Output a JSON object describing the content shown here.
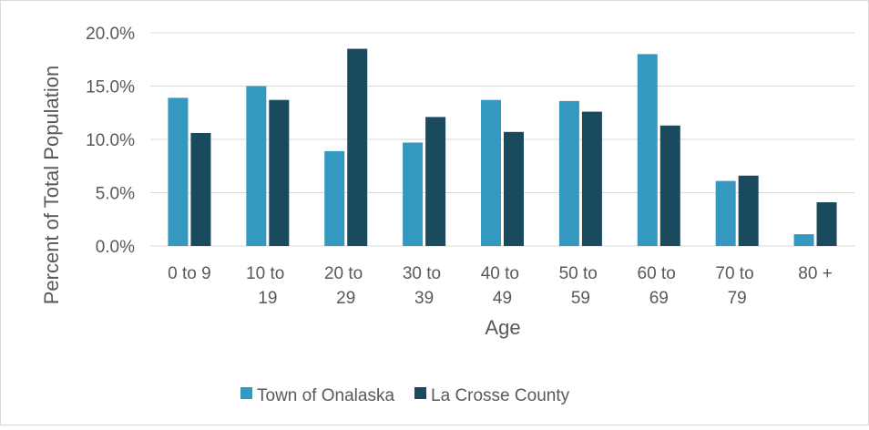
{
  "chart_data": {
    "type": "bar",
    "x_label": "Age",
    "y_label": "Percent of Total Population",
    "categories": [
      "0 to 9",
      "10 to 19",
      "20 to 29",
      "30 to 39",
      "40 to 49",
      "50 to 59",
      "60 to 69",
      "70 to 79",
      "80 +"
    ],
    "series": [
      {
        "name": "Town of Onalaska",
        "color": "#3598c0",
        "values": [
          13.9,
          15.0,
          8.9,
          9.7,
          13.7,
          13.6,
          18.0,
          6.1,
          1.1
        ]
      },
      {
        "name": "La Crosse County",
        "color": "#1a4a5e",
        "values": [
          10.6,
          13.7,
          18.5,
          12.1,
          10.7,
          12.6,
          11.3,
          6.6,
          4.1
        ]
      }
    ],
    "ylim": [
      0,
      20
    ],
    "yticks": [
      {
        "value": 0,
        "label": "0.0%"
      },
      {
        "value": 5,
        "label": "5.0%"
      },
      {
        "value": 10,
        "label": "10.0%"
      },
      {
        "value": 15,
        "label": "15.0%"
      },
      {
        "value": 20,
        "label": "20.0%"
      }
    ],
    "grid": true,
    "legend": "bottom"
  }
}
